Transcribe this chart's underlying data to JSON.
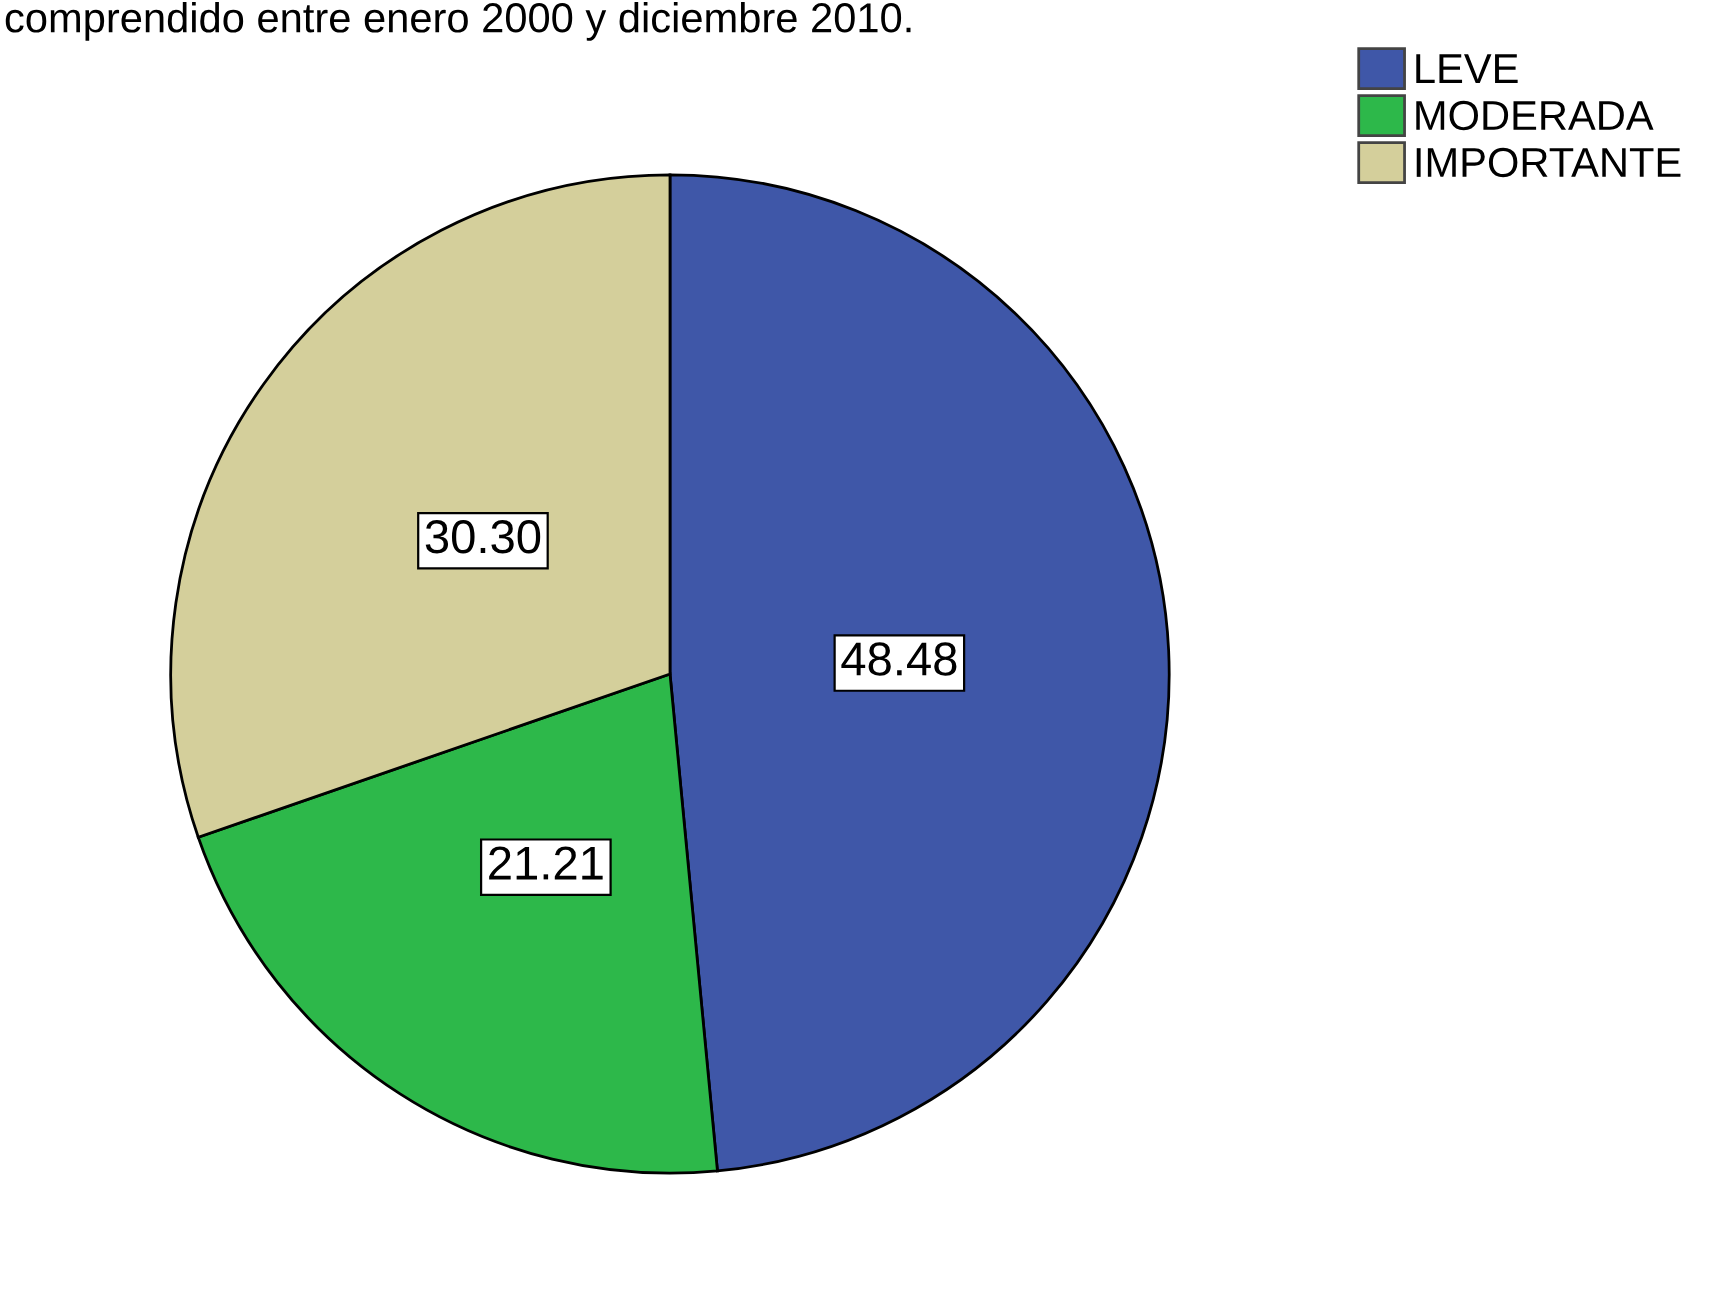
{
  "chart_data": {
    "type": "pie",
    "title": "comprendido entre enero 2000 y diciembre 2010.",
    "categories": [
      "LEVE",
      "MODERADA",
      "IMPORTANTE"
    ],
    "values": [
      48.48,
      21.21,
      30.3
    ],
    "colors": [
      "#3f57a8",
      "#2db84a",
      "#d4cf9b"
    ],
    "value_labels": [
      "48.48",
      "21.21",
      "30.30"
    ],
    "legend": "top right"
  }
}
